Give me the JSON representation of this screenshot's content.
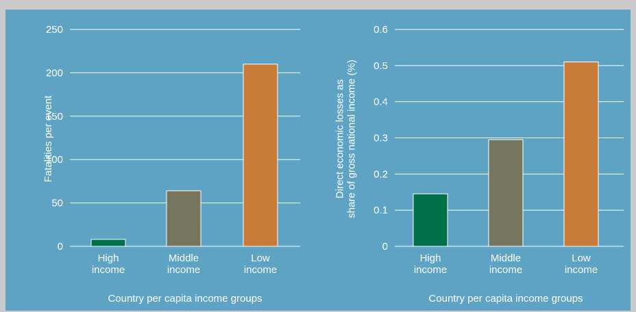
{
  "chart_data": [
    {
      "type": "bar",
      "categories": [
        [
          "High",
          "income"
        ],
        [
          "Middle",
          "income"
        ],
        [
          "Low",
          "income"
        ]
      ],
      "values": [
        8,
        64,
        210
      ],
      "colors": [
        "#00704a",
        "#76765f",
        "#c97b3a"
      ],
      "xlabel": "Country per capita income groups",
      "ylabel": [
        "Fatalities per event"
      ],
      "ylim": [
        0,
        250
      ],
      "yticks": [
        0,
        50,
        100,
        150,
        200,
        250
      ],
      "ytick_labels": [
        "0",
        "50",
        "100",
        "150",
        "200",
        "250"
      ],
      "grid": true
    },
    {
      "type": "bar",
      "categories": [
        [
          "High",
          "income"
        ],
        [
          "Middle",
          "income"
        ],
        [
          "Low",
          "income"
        ]
      ],
      "values": [
        0.145,
        0.295,
        0.51
      ],
      "colors": [
        "#00704a",
        "#76765f",
        "#c97b3a"
      ],
      "xlabel": "Country per capita income groups",
      "ylabel": [
        "Direct economic losses as",
        "share of gross national income (%)"
      ],
      "ylim": [
        0,
        0.6
      ],
      "yticks": [
        0,
        0.1,
        0.2,
        0.3,
        0.4,
        0.5,
        0.6
      ],
      "ytick_labels": [
        "0",
        "0.1",
        "0.2",
        "0.3",
        "0.4",
        "0.5",
        "0.6"
      ],
      "grid": true
    }
  ]
}
